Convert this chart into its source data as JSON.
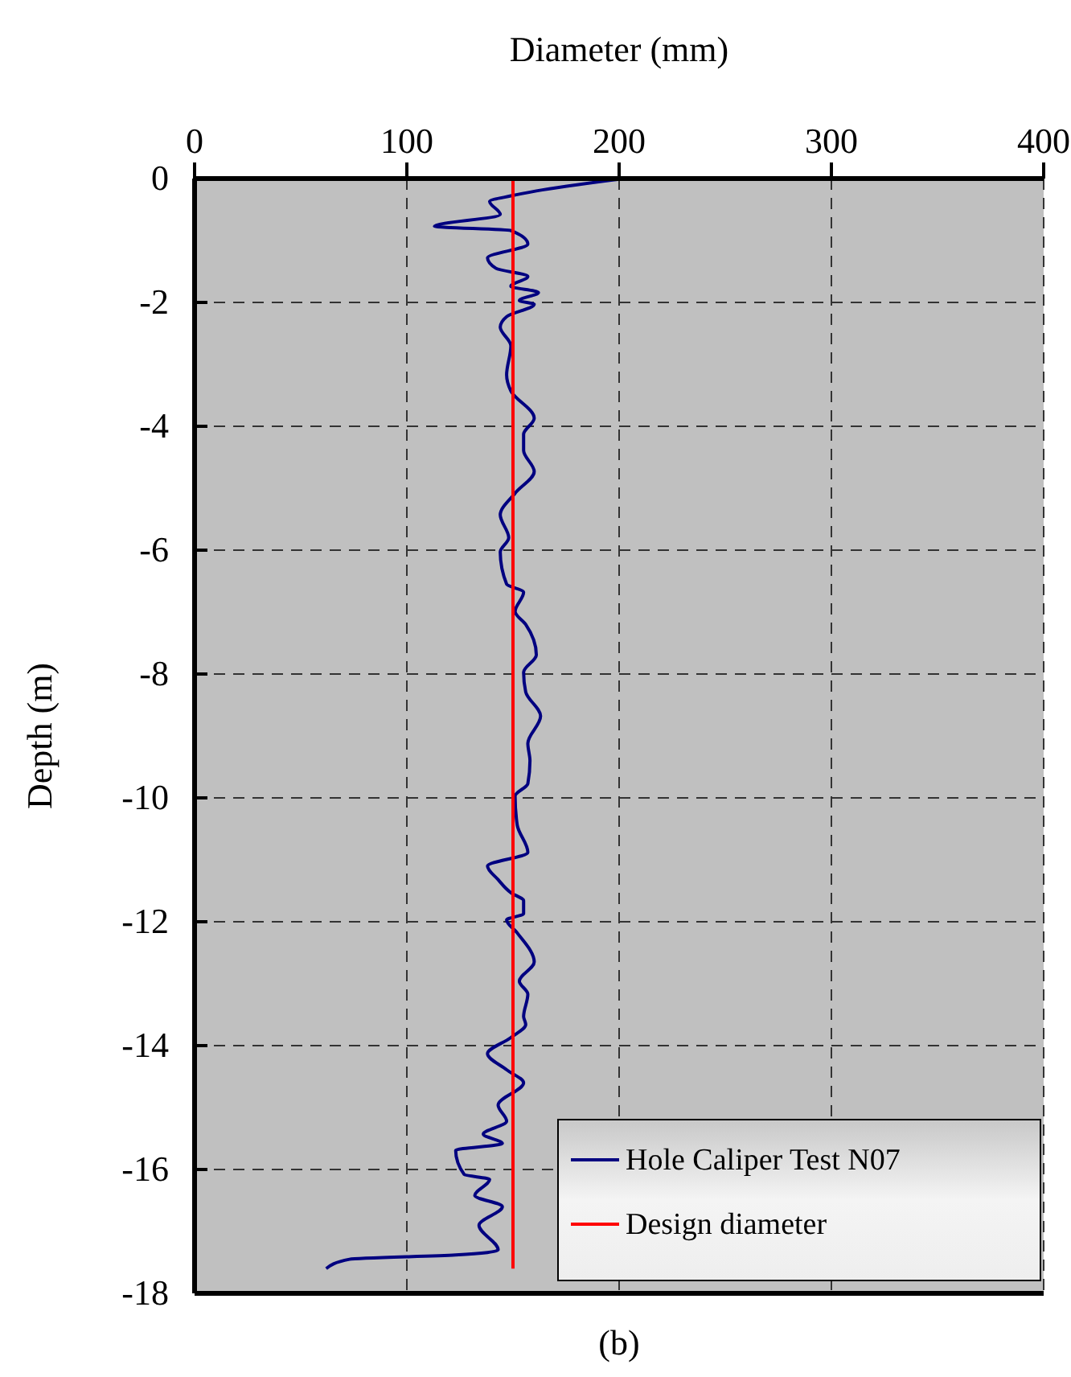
{
  "chart_data": {
    "type": "line",
    "xlabel": "Diameter (mm)",
    "ylabel": "Depth (m)",
    "xlim": [
      0,
      400
    ],
    "xticks": [
      0,
      100,
      200,
      300,
      400
    ],
    "ylim": [
      -18,
      0
    ],
    "yticks": [
      0,
      -2,
      -4,
      -6,
      -8,
      -10,
      -12,
      -14,
      -16,
      -18
    ],
    "grid": true,
    "legend": "bottom right",
    "annotations": [
      "(b)"
    ],
    "series": [
      {
        "name": "Hole Caliper Test N07",
        "color": "#000080",
        "x": [
          202,
          161,
          149,
          139,
          144,
          113,
          149,
          157,
          138,
          142,
          157,
          149,
          162,
          153,
          160,
          147,
          144,
          149,
          147,
          149,
          160,
          155,
          155,
          160,
          151,
          144,
          148,
          144,
          147,
          155,
          151,
          156,
          161,
          155,
          156,
          163,
          157,
          158,
          157,
          151,
          152,
          157,
          138,
          143,
          149,
          155,
          155,
          147,
          152,
          160,
          153,
          157,
          155,
          156,
          149,
          138,
          147,
          155,
          143,
          147,
          136,
          145,
          123,
          127,
          139,
          132,
          145,
          134,
          143,
          123,
          73,
          62
        ],
        "values": [
          0,
          -0.2,
          -0.28,
          -0.37,
          -0.58,
          -0.77,
          -0.84,
          -1.06,
          -1.28,
          -1.45,
          -1.58,
          -1.74,
          -1.84,
          -1.97,
          -2.03,
          -2.23,
          -2.4,
          -2.7,
          -3.17,
          -3.43,
          -3.87,
          -4.13,
          -4.39,
          -4.73,
          -5.08,
          -5.43,
          -5.8,
          -6.03,
          -6.55,
          -6.68,
          -6.99,
          -7.2,
          -7.69,
          -7.97,
          -8.29,
          -8.68,
          -9.12,
          -9.4,
          -9.77,
          -9.97,
          -10.44,
          -10.88,
          -11.1,
          -11.32,
          -11.53,
          -11.66,
          -11.87,
          -11.97,
          -12.18,
          -12.65,
          -12.96,
          -13.17,
          -13.53,
          -13.66,
          -13.87,
          -14.13,
          -14.39,
          -14.6,
          -14.96,
          -15.22,
          -15.43,
          -15.58,
          -15.69,
          -16.08,
          -16.16,
          -16.42,
          -16.6,
          -16.9,
          -17.3,
          -17.38,
          -17.45,
          -17.6
        ]
      },
      {
        "name": "Design diameter",
        "color": "#ff0000",
        "x": [
          150,
          150
        ],
        "values": [
          0,
          -17.6
        ]
      }
    ]
  }
}
